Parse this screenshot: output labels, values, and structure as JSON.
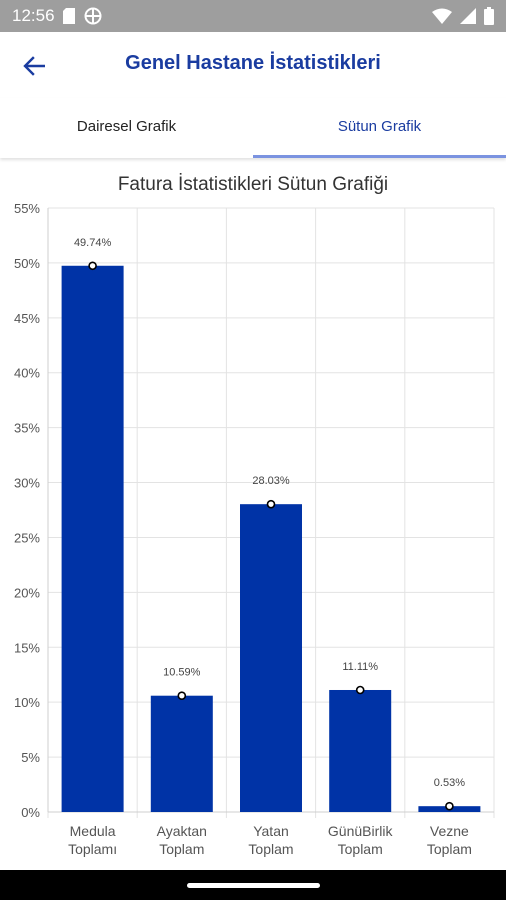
{
  "status_bar": {
    "time": "12:56",
    "icons_left": [
      "sd-card-icon",
      "vpn-globe-icon"
    ],
    "icons_right": [
      "wifi-icon",
      "signal-icon",
      "battery-icon"
    ]
  },
  "app_bar": {
    "title": "Genel Hastane İstatistikleri",
    "back_icon": "arrow-left-icon"
  },
  "tabs": [
    {
      "label": "Dairesel Grafik",
      "selected": false
    },
    {
      "label": "Sütun Grafik",
      "selected": true
    }
  ],
  "colors": {
    "accent": "#1a3ca0",
    "bar": "#0033a6",
    "tab_indicator": "#7b93e0",
    "status_bar": "#9e9e9e"
  },
  "chart_data": {
    "type": "bar",
    "title": "Fatura İstatistikleri Sütun Grafiği",
    "categories": [
      [
        "Medula",
        "Toplamı"
      ],
      [
        "Ayaktan",
        "Toplam"
      ],
      [
        "Yatan",
        "Toplam"
      ],
      [
        "GünüBirlik",
        "Toplam"
      ],
      [
        "Vezne",
        "Toplam"
      ]
    ],
    "values": [
      49.74,
      10.59,
      28.03,
      11.11,
      0.53
    ],
    "value_labels": [
      "49.74%",
      "10.59%",
      "28.03%",
      "11.11%",
      "0.53%"
    ],
    "ylim": [
      0,
      55
    ],
    "yticks": [
      0,
      5,
      10,
      15,
      20,
      25,
      30,
      35,
      40,
      45,
      50,
      55
    ],
    "ytick_labels": [
      "0%",
      "5%",
      "10%",
      "15%",
      "20%",
      "25%",
      "30%",
      "35%",
      "40%",
      "45%",
      "50%",
      "55%"
    ],
    "grid": true,
    "xlabel": "",
    "ylabel": ""
  }
}
